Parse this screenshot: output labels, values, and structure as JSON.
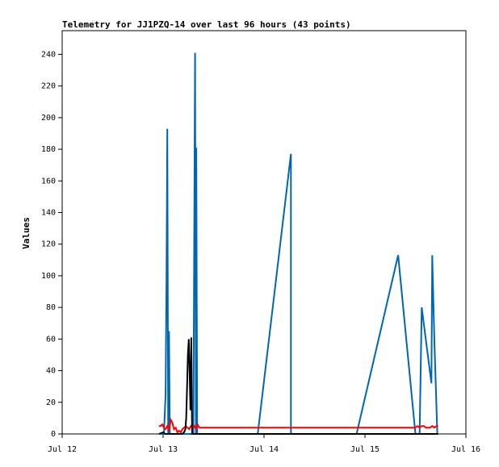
{
  "chart_data": {
    "type": "line",
    "title": "Telemetry for JJ1PZQ-14 over last 96 hours (43 points)",
    "xlabel": "",
    "ylabel": "Values",
    "x_ticks": [
      "Jul 12",
      "Jul 13",
      "Jul 14",
      "Jul 15",
      "Jul 16"
    ],
    "xlim": [
      0,
      96
    ],
    "ylim": [
      0,
      255
    ],
    "y_ticks": [
      0,
      20,
      40,
      60,
      80,
      100,
      120,
      140,
      160,
      180,
      200,
      220,
      240
    ],
    "grid": false,
    "legend": "none",
    "series": [
      {
        "color": "#0066b3",
        "points": [
          [
            23.2,
            0
          ],
          [
            24.2,
            0
          ],
          [
            24.6,
            25
          ],
          [
            24.8,
            97
          ],
          [
            25.0,
            193
          ],
          [
            25.2,
            0
          ],
          [
            25.4,
            65
          ],
          [
            25.6,
            0
          ],
          [
            31.0,
            0
          ],
          [
            31.2,
            0
          ],
          [
            31.4,
            120
          ],
          [
            31.6,
            241
          ],
          [
            31.8,
            0
          ],
          [
            31.9,
            181
          ],
          [
            32.1,
            0
          ],
          [
            46.5,
            0
          ],
          [
            54.4,
            177
          ],
          [
            54.4,
            0
          ],
          [
            70.0,
            0
          ],
          [
            79.9,
            113
          ],
          [
            84.0,
            0
          ],
          [
            85.0,
            0
          ],
          [
            85.5,
            80
          ],
          [
            87.8,
            32
          ],
          [
            88.0,
            113
          ],
          [
            88.5,
            60
          ],
          [
            89.2,
            0
          ]
        ]
      },
      {
        "color": "#ff0000",
        "points": [
          [
            23.0,
            5
          ],
          [
            23.4,
            5
          ],
          [
            23.8,
            6
          ],
          [
            24.2,
            4
          ],
          [
            24.6,
            3
          ],
          [
            25.0,
            5
          ],
          [
            25.4,
            2
          ],
          [
            25.8,
            9
          ],
          [
            26.2,
            7
          ],
          [
            26.6,
            3
          ],
          [
            27.0,
            4
          ],
          [
            27.4,
            1
          ],
          [
            27.8,
            2
          ],
          [
            28.2,
            1
          ],
          [
            28.6,
            3
          ],
          [
            29.0,
            4
          ],
          [
            29.4,
            5
          ],
          [
            29.8,
            4
          ],
          [
            30.2,
            3
          ],
          [
            30.6,
            5
          ],
          [
            31.0,
            4
          ],
          [
            31.4,
            5
          ],
          [
            31.8,
            3
          ],
          [
            32.2,
            6
          ],
          [
            32.6,
            4
          ],
          [
            33.0,
            4
          ],
          [
            40.0,
            4
          ],
          [
            50.0,
            4
          ],
          [
            60.0,
            4
          ],
          [
            70.0,
            4
          ],
          [
            80.0,
            4
          ],
          [
            84.0,
            4
          ],
          [
            84.5,
            5
          ],
          [
            85.0,
            4
          ],
          [
            85.5,
            5
          ],
          [
            86.0,
            5
          ],
          [
            86.5,
            4
          ],
          [
            87.0,
            4
          ],
          [
            87.5,
            4
          ],
          [
            88.0,
            5
          ],
          [
            88.5,
            4
          ],
          [
            89.0,
            5
          ],
          [
            89.4,
            5
          ]
        ]
      },
      {
        "color": "#000000",
        "points": [
          [
            23.0,
            0
          ],
          [
            24.0,
            1
          ],
          [
            24.5,
            0
          ],
          [
            25.0,
            0
          ],
          [
            26.0,
            0
          ],
          [
            27.0,
            0
          ],
          [
            28.0,
            0
          ],
          [
            28.5,
            0
          ],
          [
            29.0,
            1
          ],
          [
            29.3,
            3
          ],
          [
            29.5,
            10
          ],
          [
            29.7,
            30
          ],
          [
            29.9,
            50
          ],
          [
            30.1,
            60
          ],
          [
            30.3,
            40
          ],
          [
            30.5,
            15
          ],
          [
            30.7,
            61
          ],
          [
            30.9,
            0
          ],
          [
            31.5,
            0
          ],
          [
            40.0,
            0
          ],
          [
            50.0,
            0
          ],
          [
            60.0,
            0
          ],
          [
            70.0,
            0
          ],
          [
            80.0,
            0
          ],
          [
            89.4,
            0
          ]
        ]
      }
    ]
  }
}
